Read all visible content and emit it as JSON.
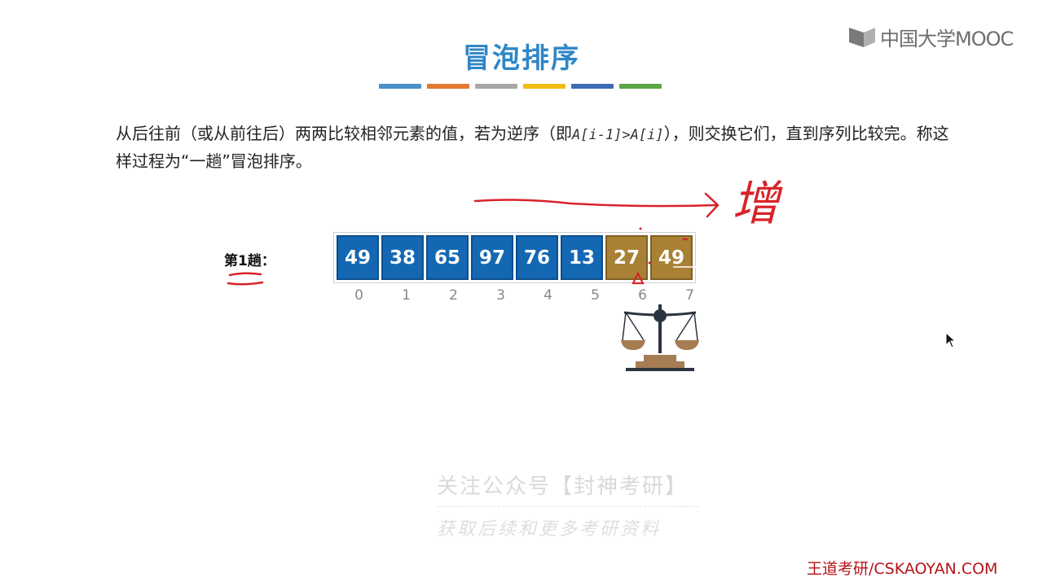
{
  "logo": {
    "text": "中国大学MOOC"
  },
  "title": "冒泡排序",
  "color_bars": [
    "#4a8fcb",
    "#e47a2f",
    "#a7a7a7",
    "#f2bb17",
    "#3f6bb5",
    "#5ea545"
  ],
  "description": {
    "part1": "从后往前（或从前往后）两两比较相邻元素的值，若为逆序（即",
    "code": "A[i-1]>A[i]",
    "part2": "），则交换它们，直到序列比较完。称这样过程为“一趟”冒泡排序。"
  },
  "pass_label": "第1趟：",
  "array": {
    "values": [
      "49",
      "38",
      "65",
      "97",
      "76",
      "13",
      "27",
      "49"
    ],
    "indices": [
      "0",
      "1",
      "2",
      "3",
      "4",
      "5",
      "6",
      "7"
    ],
    "highlight_color": "#a98135",
    "base_color": "#1468b3"
  },
  "handwriting": {
    "label": "增",
    "color": "#d8232a"
  },
  "watermark": {
    "line1": "关注公众号【封神考研】",
    "line2": "获取后续和更多考研资料"
  },
  "footer": "王道考研/CSKAOYAN.COM"
}
